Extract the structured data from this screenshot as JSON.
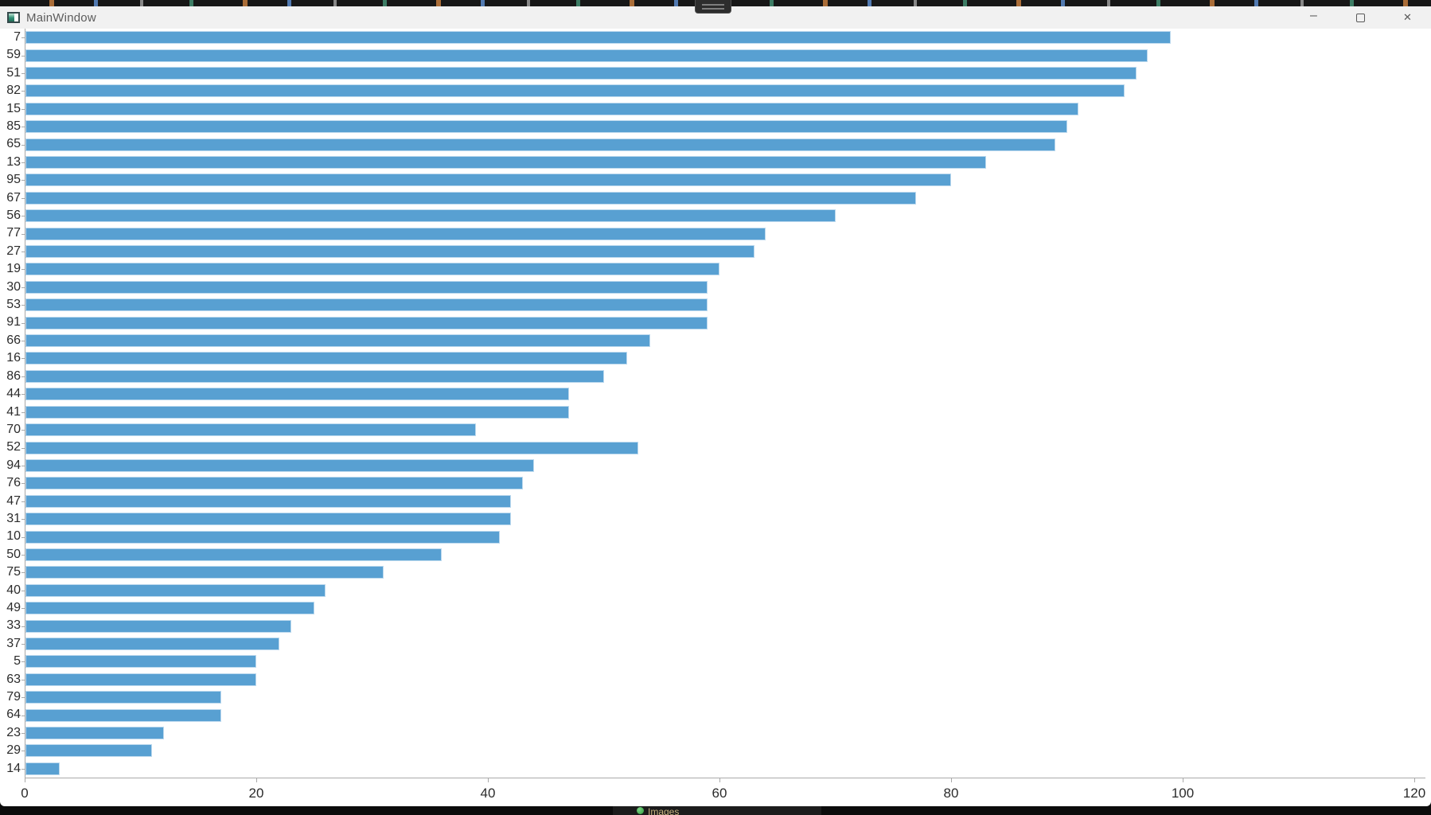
{
  "window": {
    "title": "MainWindow",
    "controls": {
      "minimize_glyph": "–",
      "close_glyph": "✕"
    }
  },
  "taskbar": {
    "label": "Images"
  },
  "chart_data": {
    "type": "bar",
    "orientation": "horizontal",
    "title": "",
    "xlabel": "",
    "ylabel": "",
    "categories": [
      "7",
      "59",
      "51",
      "82",
      "15",
      "85",
      "65",
      "13",
      "95",
      "67",
      "56",
      "77",
      "27",
      "19",
      "30",
      "53",
      "91",
      "66",
      "16",
      "86",
      "44",
      "41",
      "70",
      "52",
      "94",
      "76",
      "47",
      "31",
      "10",
      "50",
      "75",
      "40",
      "49",
      "33",
      "37",
      "5",
      "63",
      "79",
      "64",
      "23",
      "29",
      "14"
    ],
    "values": [
      99,
      97,
      96,
      95,
      91,
      90,
      89,
      83,
      80,
      77,
      70,
      64,
      63,
      60,
      59,
      59,
      59,
      54,
      52,
      50,
      47,
      47,
      39,
      53,
      44,
      43,
      42,
      42,
      41,
      36,
      31,
      26,
      25,
      23,
      22,
      20,
      20,
      17,
      17,
      12,
      11,
      3
    ],
    "xlim": [
      0,
      120
    ],
    "x_ticks": [
      0,
      20,
      40,
      60,
      80,
      100,
      120
    ],
    "grid": false,
    "legend": null,
    "bar_color": "#58A0D2",
    "bar_edge_color": "#BCD9EE",
    "axis_color": "#A9A9A9",
    "tick_label_color": "#2B2B2B"
  }
}
